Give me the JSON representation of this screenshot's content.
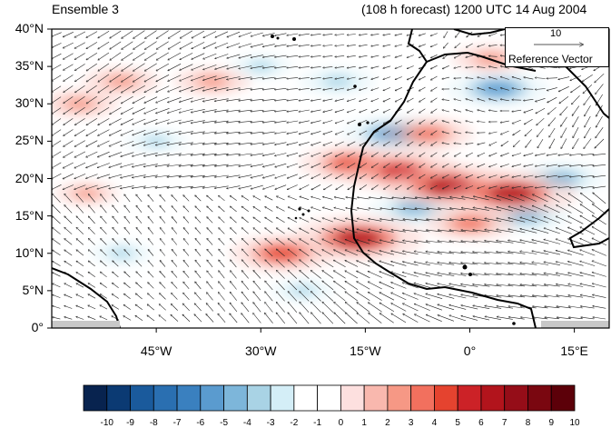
{
  "titles": {
    "left": "Ensemble 3",
    "right": "(108 h forecast) 1200 UTC 14 Aug 2004"
  },
  "reference_vector": {
    "magnitude": "10",
    "label": "Reference Vector"
  },
  "lat_labels": [
    "40°N",
    "35°N",
    "30°N",
    "25°N",
    "20°N",
    "15°N",
    "10°N",
    "5°N",
    "0°"
  ],
  "lon_labels": [
    "45°W",
    "30°W",
    "15°W",
    "0°",
    "15°E"
  ],
  "colorbar": {
    "labels": [
      "-10",
      "-9",
      "-8",
      "-7",
      "-6",
      "-5",
      "-4",
      "-3",
      "-2",
      "-1",
      "0",
      "1",
      "2",
      "3",
      "4",
      "5",
      "6",
      "7",
      "8",
      "9",
      "10"
    ],
    "colors": [
      "#08234f",
      "#0b3a73",
      "#1a5a9c",
      "#2a6fb1",
      "#3a80bf",
      "#5a9bcf",
      "#7db6da",
      "#a9d3e5",
      "#d4eef7",
      "#ffffff",
      "#ffffff",
      "#fde0df",
      "#f9b8ae",
      "#f69885",
      "#f2705e",
      "#e5432f",
      "#cc2227",
      "#b2141c",
      "#950d18",
      "#7a0710",
      "#5c0009"
    ]
  },
  "map_data": {
    "domain": {
      "lon_min": -60,
      "lon_max": 20,
      "lat_min": 0,
      "lat_max": 40
    },
    "positive_anomalies": [
      {
        "lon": -17,
        "lat": 22,
        "value": 6
      },
      {
        "lon": -16,
        "lat": 12,
        "value": 8
      },
      {
        "lon": -10,
        "lat": 21,
        "value": 7
      },
      {
        "lon": -3,
        "lat": 19,
        "value": 8
      },
      {
        "lon": 6,
        "lat": 18,
        "value": 8
      },
      {
        "lon": -27,
        "lat": 10,
        "value": 6
      },
      {
        "lon": -6,
        "lat": 26,
        "value": 5
      },
      {
        "lon": -50,
        "lat": 33,
        "value": 4
      },
      {
        "lon": -37,
        "lat": 33,
        "value": 4
      },
      {
        "lon": -56,
        "lat": 30,
        "value": 4
      },
      {
        "lon": 3,
        "lat": 36,
        "value": 4
      },
      {
        "lon": 0,
        "lat": 14,
        "value": 5
      },
      {
        "lon": -55,
        "lat": 18,
        "value": 3
      }
    ],
    "negative_anomalies": [
      {
        "lon": -11,
        "lat": 26,
        "value": -6
      },
      {
        "lon": 4,
        "lat": 32,
        "value": -6
      },
      {
        "lon": -19,
        "lat": 33,
        "value": -4
      },
      {
        "lon": -45,
        "lat": 25,
        "value": -3
      },
      {
        "lon": -8,
        "lat": 16,
        "value": -5
      },
      {
        "lon": 8,
        "lat": 15,
        "value": -5
      },
      {
        "lon": -24,
        "lat": 5,
        "value": -3
      },
      {
        "lon": -50,
        "lat": 10,
        "value": -3
      },
      {
        "lon": 13,
        "lat": 20,
        "value": -5
      },
      {
        "lon": -30,
        "lat": 35,
        "value": -3
      }
    ]
  }
}
